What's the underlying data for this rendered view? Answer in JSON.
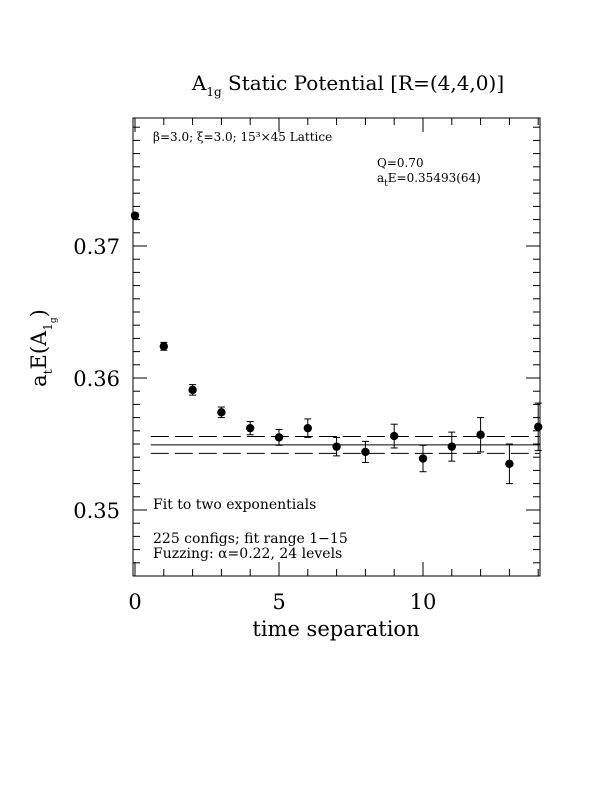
{
  "chart_data": {
    "type": "scatter",
    "title": {
      "main": "A",
      "sub": "1g",
      "rest": " Static Potential [R=(4,4,0)]"
    },
    "xlabel": "time separation",
    "ylabel": {
      "pre": "a",
      "sub_t": "t",
      "mid": "E(A",
      "sub_1": "1",
      "sub_g": "g",
      "post": ")"
    },
    "xlim": [
      0,
      14
    ],
    "ylim": [
      0.345,
      0.3795
    ],
    "x_ticks": [
      "0",
      "5",
      "10"
    ],
    "y_ticks": [
      "0.35",
      "0.36",
      "0.37"
    ],
    "x_tick_values": [
      0,
      5,
      10
    ],
    "y_tick_values": [
      0.35,
      0.36,
      0.37
    ],
    "points": [
      {
        "x": 0,
        "y": 0.3723,
        "err": 0.0002
      },
      {
        "x": 1,
        "y": 0.3624,
        "err": 0.0003
      },
      {
        "x": 2,
        "y": 0.3591,
        "err": 0.0004
      },
      {
        "x": 3,
        "y": 0.3574,
        "err": 0.0004
      },
      {
        "x": 4,
        "y": 0.3562,
        "err": 0.0005
      },
      {
        "x": 5,
        "y": 0.3555,
        "err": 0.0006
      },
      {
        "x": 6,
        "y": 0.3562,
        "err": 0.0007
      },
      {
        "x": 7,
        "y": 0.3548,
        "err": 0.0007
      },
      {
        "x": 8,
        "y": 0.3544,
        "err": 0.0008
      },
      {
        "x": 9,
        "y": 0.3556,
        "err": 0.0009
      },
      {
        "x": 10,
        "y": 0.3539,
        "err": 0.001
      },
      {
        "x": 11,
        "y": 0.3548,
        "err": 0.0011
      },
      {
        "x": 12,
        "y": 0.3557,
        "err": 0.0013
      },
      {
        "x": 13,
        "y": 0.3535,
        "err": 0.0015
      },
      {
        "x": 14,
        "y": 0.3563,
        "err": 0.0018
      }
    ],
    "fit": {
      "x_range": [
        1,
        14
      ],
      "center": 0.35493,
      "error": 0.00064
    },
    "annotations": {
      "lattice_text": "β=3.0; ξ=3.0; 15³×45 Lattice",
      "q_text": "Q=0.70",
      "energy_pre": "a",
      "energy_sub": "t",
      "energy_rest": "E=0.35493(64)",
      "fit_text": "Fit to two exponentials",
      "configs_text": "225 configs; fit range 1−15",
      "fuzzing_text": "Fuzzing: α=0.22, 24 levels"
    }
  }
}
